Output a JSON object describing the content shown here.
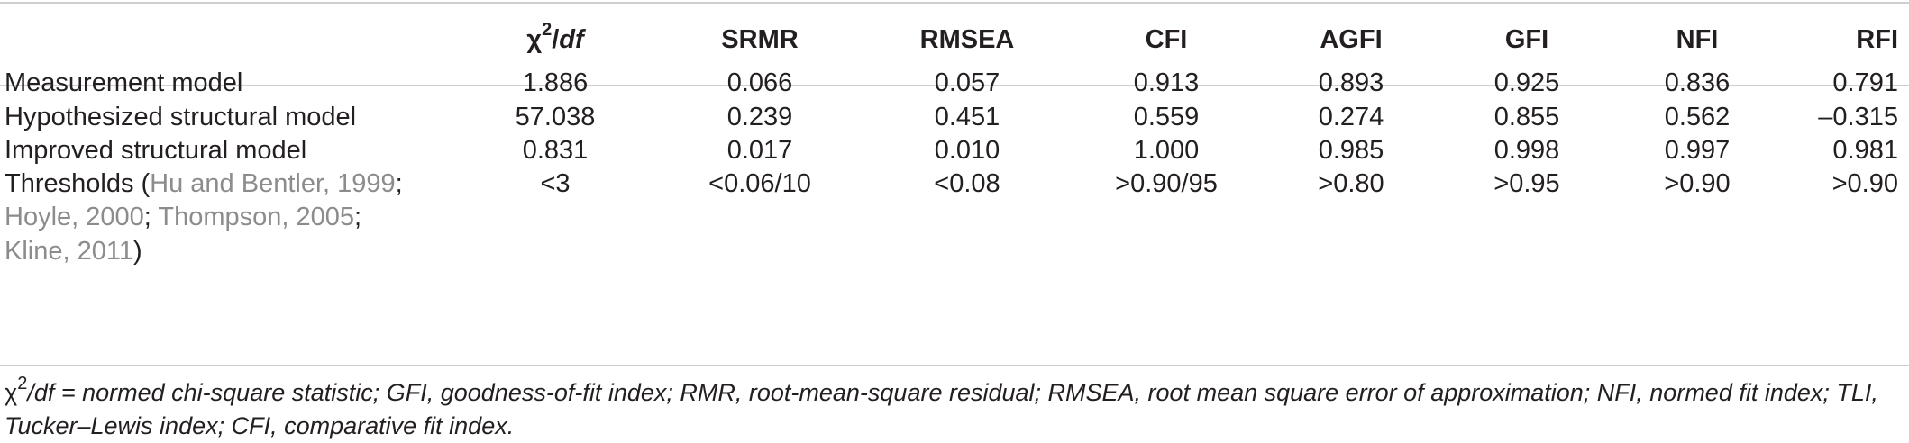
{
  "table": {
    "header": {
      "chi_symbol": "χ",
      "chi_sup": "2",
      "chi_suffix": "/",
      "chi_df": "df",
      "columns": [
        "SRMR",
        "RMSEA",
        "CFI",
        "AGFI",
        "GFI",
        "NFI",
        "RFI"
      ]
    },
    "rows": [
      {
        "label": "Measurement model",
        "values": [
          "1.886",
          "0.066",
          "0.057",
          "0.913",
          "0.893",
          "0.925",
          "0.836",
          "0.791"
        ]
      },
      {
        "label": "Hypothesized structural model",
        "values": [
          "57.038",
          "0.239",
          "0.451",
          "0.559",
          "0.274",
          "0.855",
          "0.562",
          "–0.315"
        ]
      },
      {
        "label": "Improved structural model",
        "values": [
          "0.831",
          "0.017",
          "0.010",
          "1.000",
          "0.985",
          "0.998",
          "0.997",
          "0.981"
        ]
      }
    ],
    "thresholds": {
      "label_prefix": "Thresholds (",
      "ref1": "Hu and Bentler, 1999",
      "sep1": ";",
      "ref2": "Hoyle, 2000",
      "sep2": "; ",
      "ref3": "Thompson, 2005",
      "sep3": ";",
      "ref4": "Kline, 2011",
      "close": ")",
      "values": [
        "<3",
        "<0.06/10",
        "<0.08",
        ">0.90/95",
        ">0.80",
        ">0.95",
        ">0.90",
        ">0.90"
      ]
    }
  },
  "footnote": {
    "chi_symbol": "χ",
    "chi_sup": "2",
    "rest": "/df = normed chi-square statistic; GFI, goodness-of-fit index; RMR, root-mean-square residual; RMSEA, root mean square error of approximation; NFI, normed fit index; TLI, Tucker–Lewis index; CFI, comparative fit index."
  }
}
